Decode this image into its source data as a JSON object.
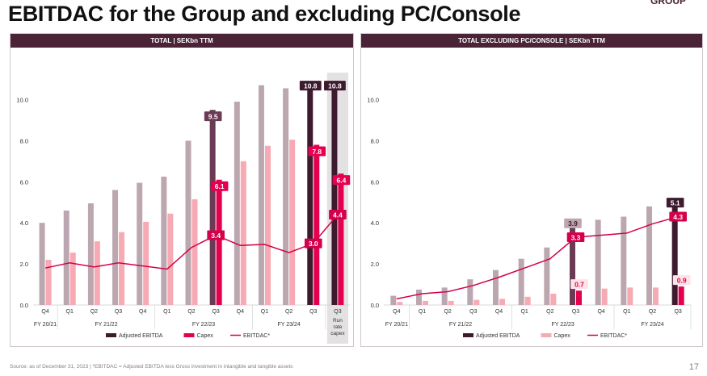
{
  "slide": {
    "title": "EBITDAC for the Group and excluding PC/Console",
    "logo": "GROUP",
    "footnote": "Source: as of December 31, 2023 | *EBITDAC = Adjusted EBITDA less Gross investment in intangible and tangible assets",
    "page_number": "17"
  },
  "colors": {
    "header": "#4a2436",
    "ebitda_light": "#bca7b1",
    "ebitda_dark": "#6b3a55",
    "ebitda_darkest": "#3d1a2e",
    "capex_light": "#f7aab3",
    "capex_bright": "#e5004f",
    "ebitdac_line": "#d4004a",
    "runrate_bg": "#e4e1e2"
  },
  "chart_data": [
    {
      "type": "bar",
      "header": "TOTAL | SEKbn TTM",
      "categories": [
        "Q4",
        "Q1",
        "Q2",
        "Q3",
        "Q4",
        "Q1",
        "Q2",
        "Q3",
        "Q4",
        "Q1",
        "Q2",
        "Q3",
        "Q3"
      ],
      "category_sublabels": [
        "",
        "",
        "",
        "",
        "",
        "",
        "",
        "",
        "",
        "",
        "",
        "",
        "Run rate capex"
      ],
      "fiscal_years": [
        {
          "label": "FY 20/21",
          "from": 0,
          "to": 0
        },
        {
          "label": "FY 21/22",
          "from": 1,
          "to": 4
        },
        {
          "label": "FY 22/23",
          "from": 5,
          "to": 8
        },
        {
          "label": "FY 23/24",
          "from": 9,
          "to": 11
        }
      ],
      "ylim": [
        0,
        11
      ],
      "yticks": [
        "0.0",
        "2.0",
        "4.0",
        "6.0",
        "8.0",
        "10.0"
      ],
      "series": [
        {
          "name": "Adjusted EBITDA",
          "kind": "bar",
          "values": [
            4.0,
            4.6,
            4.95,
            5.6,
            5.95,
            6.25,
            8.0,
            9.5,
            9.9,
            10.7,
            10.55,
            10.8,
            10.8
          ]
        },
        {
          "name": "Capex",
          "kind": "bar",
          "values": [
            2.2,
            2.55,
            3.1,
            3.55,
            4.05,
            4.45,
            5.15,
            6.1,
            7.0,
            7.75,
            8.05,
            7.8,
            6.4
          ]
        },
        {
          "name": "EBITDAC*",
          "kind": "line",
          "values": [
            1.8,
            2.05,
            1.85,
            2.05,
            1.9,
            1.75,
            2.8,
            3.4,
            2.9,
            2.95,
            2.55,
            3.0,
            4.4
          ]
        }
      ],
      "highlight_ebitda": [
        7,
        11,
        12
      ],
      "highlight_capex": [
        7,
        11,
        12
      ],
      "highlight_ebitdac": [
        7,
        11,
        12
      ],
      "runrate_index": 12,
      "labels": {
        "ebitda": {
          "7": "9.5",
          "11": "10.8",
          "12": "10.8"
        },
        "capex": {
          "7": "6.1",
          "11": "7.8",
          "12": "6.4"
        },
        "ebitdac": {
          "7": "3.4",
          "11": "3.0",
          "12": "4.4"
        }
      },
      "legend": [
        "Adjusted EBITDA",
        "Capex",
        "EBITDAC*"
      ]
    },
    {
      "type": "bar",
      "header": "TOTAL EXCLUDING PC/CONSOLE | SEKbn TTM",
      "categories": [
        "Q4",
        "Q1",
        "Q2",
        "Q3",
        "Q4",
        "Q1",
        "Q2",
        "Q3",
        "Q4",
        "Q1",
        "Q2",
        "Q3"
      ],
      "category_sublabels": [
        "",
        "",
        "",
        "",
        "",
        "",
        "",
        "",
        "",
        "",
        "",
        ""
      ],
      "fiscal_years": [
        {
          "label": "FY 20/21",
          "from": 0,
          "to": 0
        },
        {
          "label": "FY 21/22",
          "from": 1,
          "to": 4
        },
        {
          "label": "FY 22/23",
          "from": 5,
          "to": 8
        },
        {
          "label": "FY 23/24",
          "from": 9,
          "to": 11
        }
      ],
      "ylim": [
        0,
        11
      ],
      "yticks": [
        "0.0",
        "2.0",
        "4.0",
        "6.0",
        "8.0",
        "10.0"
      ],
      "series": [
        {
          "name": "Adjusted EBITDA",
          "kind": "bar",
          "values": [
            0.45,
            0.75,
            0.85,
            1.25,
            1.7,
            2.25,
            2.8,
            3.9,
            4.15,
            4.3,
            4.8,
            5.1
          ]
        },
        {
          "name": "Capex",
          "kind": "bar",
          "values": [
            0.15,
            0.2,
            0.2,
            0.25,
            0.3,
            0.4,
            0.55,
            0.7,
            0.8,
            0.85,
            0.85,
            0.9
          ]
        },
        {
          "name": "EBITDAC*",
          "kind": "line",
          "values": [
            0.3,
            0.55,
            0.65,
            0.95,
            1.35,
            1.8,
            2.25,
            3.3,
            3.4,
            3.5,
            3.95,
            4.3
          ]
        }
      ],
      "highlight_ebitda": [
        7,
        11
      ],
      "highlight_capex": [
        7,
        11
      ],
      "highlight_ebitdac": [
        7,
        11
      ],
      "runrate_index": -1,
      "labels": {
        "ebitda": {
          "7": "3.9",
          "11": "5.1"
        },
        "capex": {
          "7": "0.7",
          "11": "0.9"
        },
        "ebitdac": {
          "7": "3.3",
          "11": "4.3"
        }
      },
      "legend": [
        "Adjusted EBITDA",
        "Capex",
        "EBITDAC*"
      ]
    }
  ]
}
